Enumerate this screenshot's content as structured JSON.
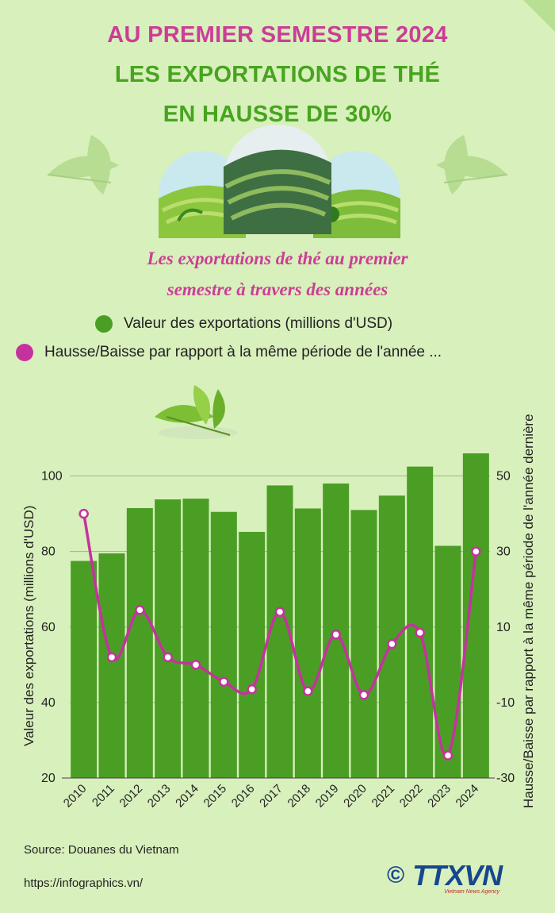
{
  "header": {
    "line1": "AU PREMIER SEMESTRE 2024",
    "line2": "LES EXPORTATIONS DE THÉ",
    "line3": "EN HAUSSE DE 30%",
    "subtitle1": "Les exportations de thé au premier",
    "subtitle2": "semestre à travers des années"
  },
  "legend": {
    "value_label": "Valeur des exportations (millions d'USD)",
    "change_label": "Hausse/Baisse par rapport à la même période de l'année ..."
  },
  "colors": {
    "bar": "#4a9e24",
    "line": "#c5329f",
    "title_pink": "#cc3d96",
    "title_green": "#47a41f",
    "background": "#d8f0bc"
  },
  "footer": {
    "source": "Source: Douanes du Vietnam",
    "url": "https://infographics.vn/",
    "logo_symbol": "©",
    "logo_text": "TTXVN",
    "logo_sub": "Vietnam News Agency"
  },
  "chart_data": {
    "type": "bar",
    "categories": [
      "2010",
      "2011",
      "2012",
      "2013",
      "2014",
      "2015",
      "2016",
      "2017",
      "2018",
      "2019",
      "2020",
      "2021",
      "2022",
      "2023",
      "2024"
    ],
    "series": [
      {
        "name": "Valeur des exportations (millions d'USD)",
        "type": "bar",
        "axis": "left",
        "values": [
          77.5,
          79.5,
          91.5,
          93.8,
          94.0,
          90.5,
          85.2,
          97.5,
          91.4,
          98.0,
          91.0,
          94.8,
          102.5,
          81.5,
          106.0
        ]
      },
      {
        "name": "Hausse/Baisse par rapport à la même période de l'année dernière",
        "type": "line",
        "axis": "right",
        "values": [
          40.0,
          2.0,
          14.5,
          2.0,
          0.0,
          -4.5,
          -6.5,
          14.0,
          -7.0,
          8.0,
          -8.0,
          5.5,
          8.5,
          -24.0,
          30.0
        ]
      }
    ],
    "ylabel": "Valeur des exportations (millions d'USD)",
    "y2label": "Hausse/Baisse par rapport à la même période de l'année dernière",
    "yticks": [
      20,
      40,
      60,
      80,
      100
    ],
    "y2ticks": [
      -30,
      -10,
      10,
      30,
      50
    ],
    "ylim": [
      20,
      110
    ],
    "y2lim": [
      -30,
      60
    ],
    "grid": true,
    "legend_position": "top"
  }
}
